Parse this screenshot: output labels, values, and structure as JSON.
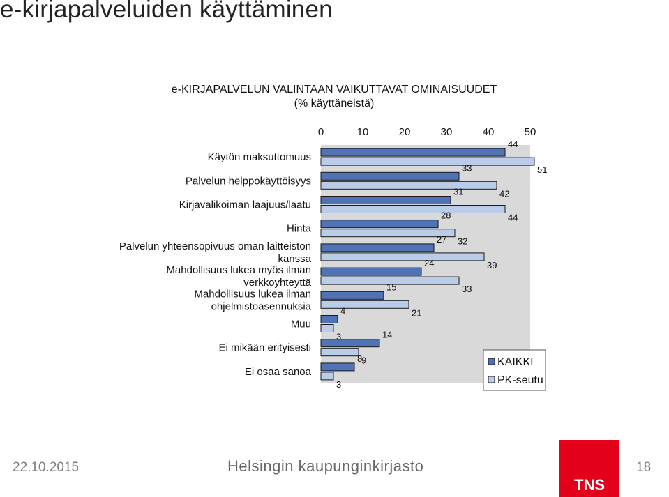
{
  "page": {
    "title": "e-kirjapalveluiden käyttäminen",
    "footer_date": "22.10.2015",
    "footer_org": "Helsingin kaupunginkirjasto",
    "page_number": "18",
    "logo_text": "TNS"
  },
  "chart_data": {
    "type": "bar",
    "orientation": "horizontal",
    "title": "e-KIRJAPALVELUN VALINTAAN VAIKUTTAVAT OMINAISUUDET\n(% käyttäneistä)",
    "title_lines": [
      "e-KIRJAPALVELUN VALINTAAN VAIKUTTAVAT OMINAISUUDET",
      "(% käyttäneistä)"
    ],
    "categories": [
      [
        "Käytön maksuttomuus"
      ],
      [
        "Palvelun helppokäyttöisyys"
      ],
      [
        "Kirjavalikoiman laajuus/laatu"
      ],
      [
        "Hinta"
      ],
      [
        "Palvelun yhteensopivuus oman laitteiston",
        "kanssa"
      ],
      [
        "Mahdollisuus lukea myös ilman",
        "verkkoyhteyttä"
      ],
      [
        "Mahdollisuus lukea ilman",
        "ohjelmistoasennuksia"
      ],
      [
        "Muu"
      ],
      [
        "Ei mikään erityisesti"
      ],
      [
        "Ei osaa sanoa"
      ]
    ],
    "series": [
      {
        "name": "KAIKKI",
        "color": "#4f73b5",
        "values": [
          44,
          33,
          31,
          28,
          27,
          24,
          15,
          4,
          14,
          8
        ]
      },
      {
        "name": "PK-seutu",
        "color": "#b9cde9",
        "values": [
          51,
          42,
          44,
          32,
          39,
          33,
          21,
          3,
          9,
          3
        ]
      }
    ],
    "xlim": [
      0,
      50
    ],
    "xticks": [
      "0",
      "10",
      "20",
      "30",
      "40",
      "50"
    ],
    "xtick_position": "top",
    "grid": false,
    "plot_background": "#d9d9d9",
    "legend_position": "bottom-right"
  }
}
